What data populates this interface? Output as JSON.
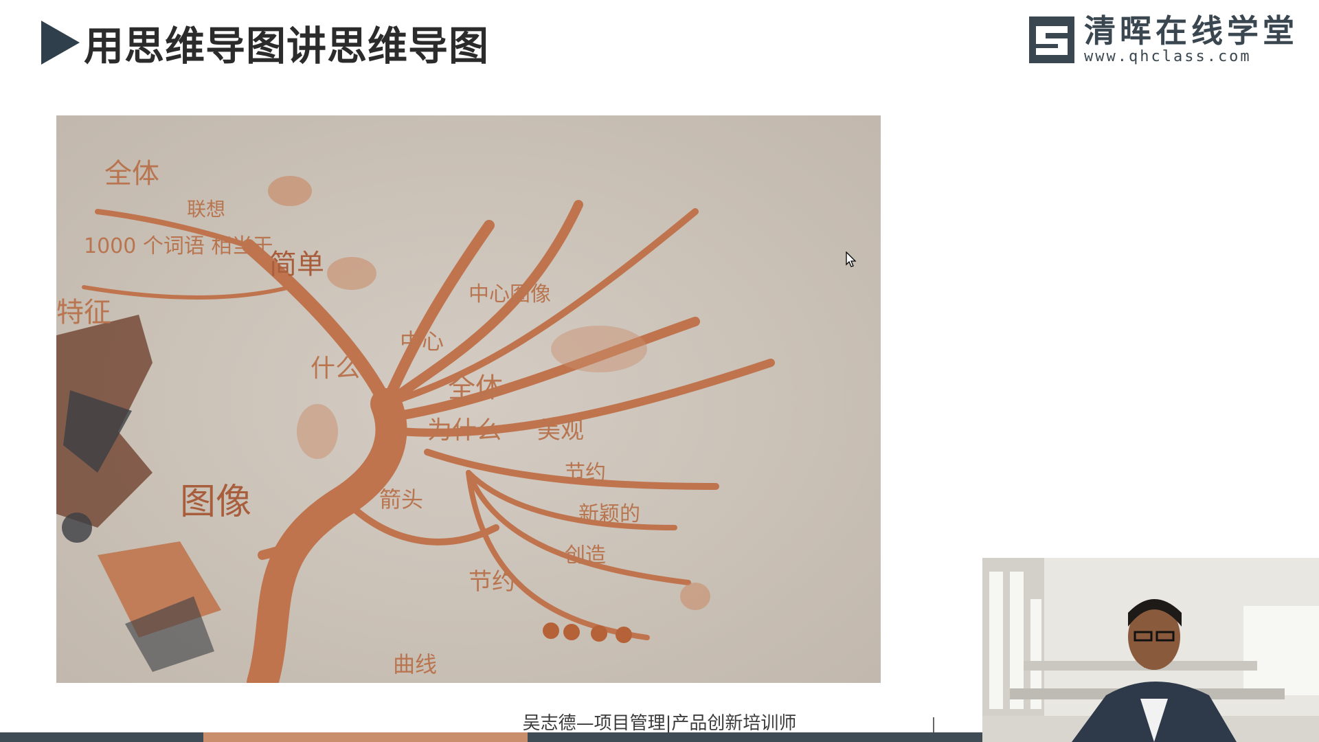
{
  "slide": {
    "title": "用思维导图讲思维导图"
  },
  "logo": {
    "name_cn": "清晖在线学堂",
    "url": "www.qhclass.com"
  },
  "mindmap": {
    "center": "图像",
    "labels": {
      "quanti_top": "全体",
      "lianxiang": "联想",
      "words": "1000 个词语 相当于",
      "tezheng": "特征",
      "jiandan": "简单",
      "shenme": "什么",
      "zhongxin": "中心",
      "zhongxin_tuxiang": "中心图像",
      "quanti_mid": "全体",
      "weishenme": "为什么",
      "meiguan": "美观",
      "jieshao": "节约",
      "xinyu": "新颖的",
      "chuangzao": "创造",
      "jieyue2": "节约",
      "jiantou": "箭头",
      "quhe": "曲线"
    }
  },
  "footer": {
    "presenter": "吴志德—项目管理|产品创新培训师"
  },
  "player": {
    "progress_fraction": 0.33
  },
  "colors": {
    "accent": "#c98e6c",
    "branch": "#c0744e",
    "title_arrow": "#2f3f4b"
  },
  "icons": {
    "title_marker": "play-triangle-icon",
    "cursor": "mouse-pointer-icon",
    "logo": "qh-logo-icon"
  }
}
